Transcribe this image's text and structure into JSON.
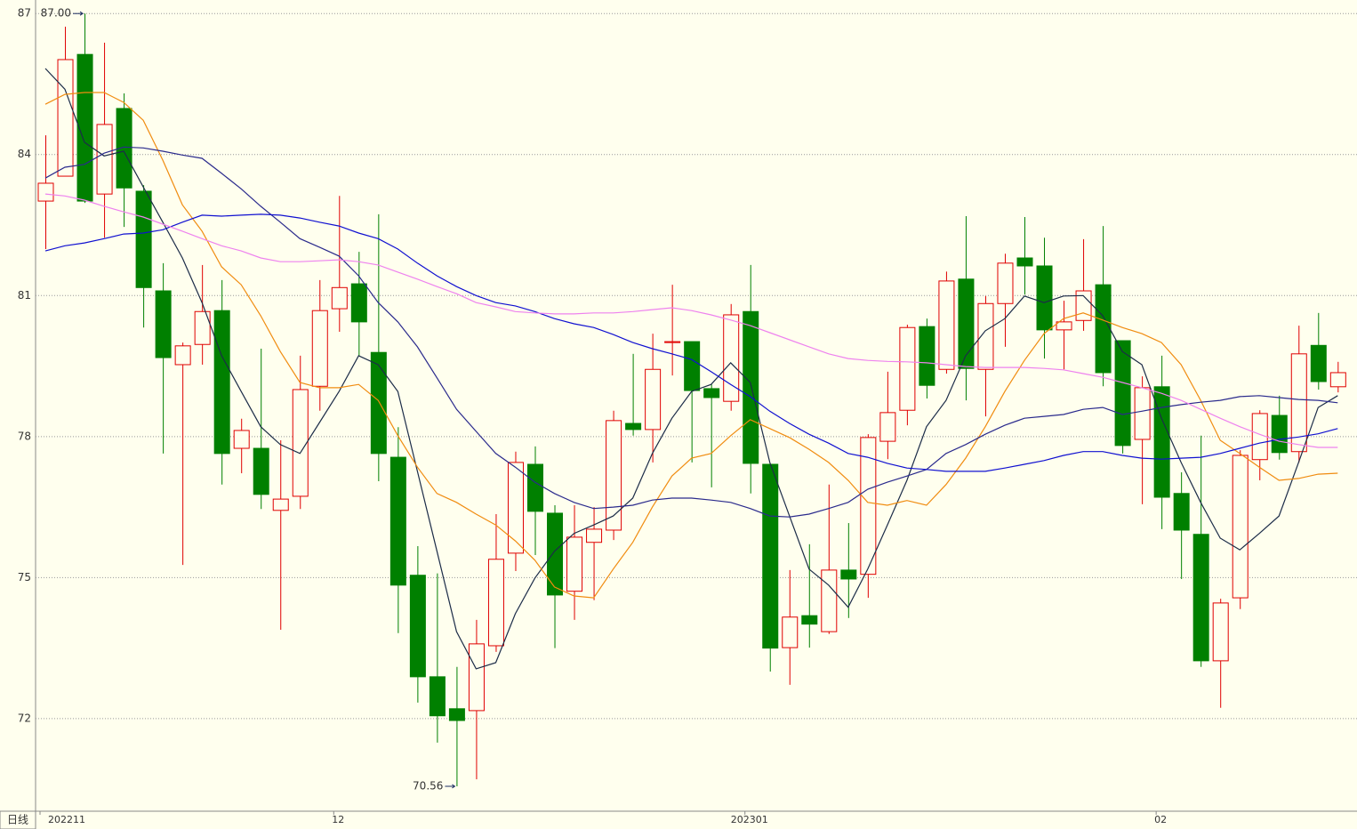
{
  "chart_data": {
    "type": "candlestick",
    "period_label": "日线",
    "categories": [
      "202211",
      null,
      null,
      null,
      null,
      null,
      null,
      null,
      null,
      null,
      null,
      null,
      null,
      null,
      null,
      "12",
      null,
      null,
      null,
      null,
      null,
      null,
      null,
      null,
      null,
      null,
      null,
      null,
      null,
      null,
      null,
      null,
      null,
      null,
      null,
      null,
      "202301",
      null,
      null,
      null,
      null,
      null,
      null,
      null,
      null,
      null,
      null,
      null,
      null,
      null,
      null,
      null,
      null,
      null,
      null,
      null,
      null,
      "02",
      null,
      null,
      null,
      null,
      null,
      null,
      null,
      null,
      null
    ],
    "open": [
      83.01,
      83.54,
      86.13,
      83.16,
      84.98,
      83.22,
      81.1,
      79.53,
      79.96,
      80.68,
      77.75,
      77.75,
      76.43,
      76.73,
      79.07,
      80.72,
      81.25,
      79.79,
      77.56,
      75.05,
      72.89,
      72.21,
      72.17,
      73.55,
      75.52,
      77.41,
      76.37,
      74.71,
      75.75,
      76.01,
      78.28,
      78.15,
      80.0,
      80.02,
      79.02,
      78.75,
      80.66,
      77.41,
      73.51,
      74.19,
      73.85,
      75.16,
      75.07,
      77.9,
      78.56,
      80.34,
      79.43,
      81.35,
      79.43,
      80.83,
      81.8,
      81.63,
      80.27,
      80.47,
      81.23,
      80.04,
      77.94,
      79.06,
      76.79,
      75.92,
      73.23,
      74.57,
      77.51,
      78.45,
      77.68,
      79.94,
      79.06
    ],
    "high": [
      84.41,
      86.72,
      87.0,
      86.38,
      85.3,
      83.35,
      81.69,
      80.0,
      81.65,
      81.33,
      78.38,
      79.87,
      77.92,
      79.72,
      81.33,
      83.12,
      81.93,
      82.73,
      78.2,
      75.67,
      75.09,
      73.1,
      74.1,
      76.35,
      77.68,
      77.79,
      76.54,
      76.54,
      76.5,
      78.55,
      79.76,
      80.19,
      81.23,
      80.02,
      79.11,
      80.82,
      81.65,
      77.41,
      75.16,
      75.71,
      76.98,
      76.16,
      78.05,
      79.38,
      80.38,
      80.51,
      81.51,
      82.69,
      80.99,
      81.89,
      82.67,
      82.23,
      80.89,
      82.2,
      82.48,
      80.04,
      79.28,
      79.72,
      77.24,
      78.02,
      74.55,
      77.71,
      78.56,
      78.87,
      80.36,
      80.63,
      79.59
    ],
    "low": [
      81.99,
      83.54,
      82.97,
      82.23,
      82.46,
      80.32,
      77.64,
      75.27,
      79.53,
      76.98,
      77.22,
      76.46,
      73.89,
      76.46,
      78.55,
      80.23,
      79.72,
      77.05,
      73.82,
      72.34,
      71.49,
      70.56,
      70.71,
      73.42,
      75.14,
      75.48,
      73.5,
      74.1,
      74.52,
      75.8,
      78.02,
      77.45,
      79.3,
      77.45,
      76.92,
      78.55,
      76.79,
      73.0,
      72.72,
      73.51,
      73.8,
      74.14,
      74.57,
      77.52,
      78.24,
      78.81,
      79.34,
      78.77,
      78.43,
      79.91,
      81.02,
      79.66,
      79.43,
      80.25,
      79.07,
      77.64,
      76.56,
      76.03,
      74.97,
      73.1,
      72.23,
      74.33,
      77.07,
      77.51,
      77.45,
      79.0,
      78.94
    ],
    "close": [
      83.39,
      86.02,
      83.01,
      84.64,
      83.29,
      81.17,
      79.68,
      79.93,
      80.66,
      77.64,
      78.13,
      76.77,
      76.67,
      79.0,
      80.68,
      81.17,
      80.44,
      77.64,
      74.84,
      72.89,
      72.06,
      71.96,
      73.59,
      75.39,
      77.45,
      76.41,
      74.63,
      75.86,
      76.03,
      78.34,
      78.15,
      79.43,
      80.02,
      78.98,
      78.83,
      80.59,
      77.43,
      73.5,
      74.16,
      74.01,
      75.16,
      74.97,
      77.98,
      78.51,
      80.32,
      79.09,
      81.31,
      79.45,
      80.83,
      81.69,
      81.63,
      80.27,
      80.44,
      81.1,
      79.36,
      77.81,
      79.04,
      76.71,
      76.01,
      73.23,
      74.46,
      77.6,
      78.49,
      77.66,
      79.76,
      79.17,
      79.36
    ],
    "up_color": "#e00000",
    "down_color": "#008000",
    "series": [
      {
        "color": "#1c2c48",
        "values": [
          85.83,
          85.39,
          84.26,
          83.97,
          84.07,
          83.31,
          82.56,
          81.8,
          80.85,
          79.72,
          78.96,
          78.21,
          77.83,
          77.64,
          78.3,
          78.96,
          79.72,
          79.53,
          78.96,
          77.26,
          75.56,
          73.85,
          73.06,
          73.19,
          74.23,
          74.99,
          75.56,
          75.94,
          76.12,
          76.31,
          76.69,
          77.64,
          78.39,
          78.96,
          79.11,
          79.57,
          79.15,
          77.45,
          76.31,
          75.18,
          74.84,
          74.37,
          75.18,
          76.12,
          77.07,
          78.21,
          78.77,
          79.72,
          80.25,
          80.51,
          80.99,
          80.85,
          80.99,
          81.0,
          80.57,
          79.81,
          79.53,
          78.39,
          77.45,
          76.6,
          75.84,
          75.59,
          75.94,
          76.31,
          77.45,
          78.62,
          78.87
        ]
      },
      {
        "color": "#f08c10",
        "values": [
          85.07,
          85.28,
          85.32,
          85.32,
          85.11,
          84.73,
          83.88,
          82.93,
          82.37,
          81.61,
          81.23,
          80.57,
          79.81,
          79.15,
          79.04,
          79.04,
          79.11,
          78.77,
          78.02,
          77.35,
          76.79,
          76.6,
          76.35,
          76.12,
          75.78,
          75.37,
          74.8,
          74.61,
          74.57,
          75.18,
          75.75,
          76.5,
          77.16,
          77.54,
          77.64,
          78.02,
          78.36,
          78.17,
          77.98,
          77.73,
          77.45,
          77.07,
          76.6,
          76.54,
          76.64,
          76.54,
          76.98,
          77.54,
          78.21,
          78.96,
          79.62,
          80.19,
          80.51,
          80.63,
          80.48,
          80.32,
          80.19,
          80.0,
          79.53,
          78.77,
          77.92,
          77.64,
          77.35,
          77.07,
          77.11,
          77.2,
          77.22
        ]
      },
      {
        "color": "#2a2a8c",
        "values": [
          83.5,
          83.73,
          83.79,
          84.03,
          84.16,
          84.14,
          84.07,
          83.99,
          83.92,
          83.6,
          83.27,
          82.9,
          82.56,
          82.21,
          82.03,
          81.84,
          81.42,
          80.85,
          80.44,
          79.91,
          79.25,
          78.58,
          78.11,
          77.64,
          77.35,
          77.03,
          76.79,
          76.6,
          76.47,
          76.5,
          76.54,
          76.65,
          76.69,
          76.69,
          76.65,
          76.6,
          76.47,
          76.31,
          76.29,
          76.35,
          76.47,
          76.6,
          76.88,
          77.03,
          77.16,
          77.3,
          77.64,
          77.83,
          78.05,
          78.24,
          78.39,
          78.43,
          78.47,
          78.58,
          78.62,
          78.47,
          78.54,
          78.62,
          78.68,
          78.73,
          78.77,
          78.85,
          78.87,
          78.83,
          78.79,
          78.77,
          78.72
        ]
      },
      {
        "color": "#1010d0",
        "values": [
          81.95,
          82.06,
          82.12,
          82.21,
          82.31,
          82.33,
          82.4,
          82.56,
          82.71,
          82.69,
          82.71,
          82.73,
          82.71,
          82.65,
          82.56,
          82.48,
          82.33,
          82.21,
          81.99,
          81.69,
          81.42,
          81.19,
          81.0,
          80.85,
          80.78,
          80.66,
          80.51,
          80.4,
          80.32,
          80.17,
          80.0,
          79.87,
          79.76,
          79.64,
          79.38,
          79.11,
          78.85,
          78.54,
          78.28,
          78.05,
          77.86,
          77.64,
          77.56,
          77.43,
          77.33,
          77.3,
          77.26,
          77.26,
          77.26,
          77.33,
          77.41,
          77.49,
          77.6,
          77.68,
          77.68,
          77.6,
          77.54,
          77.52,
          77.54,
          77.56,
          77.64,
          77.75,
          77.86,
          77.94,
          77.99,
          78.06,
          78.17
        ]
      },
      {
        "color": "#ee82ee",
        "values": [
          83.16,
          83.12,
          83.03,
          82.9,
          82.78,
          82.67,
          82.52,
          82.37,
          82.21,
          82.06,
          81.95,
          81.8,
          81.72,
          81.72,
          81.74,
          81.76,
          81.72,
          81.65,
          81.5,
          81.35,
          81.19,
          81.04,
          80.85,
          80.76,
          80.66,
          80.63,
          80.61,
          80.61,
          80.63,
          80.63,
          80.66,
          80.7,
          80.74,
          80.68,
          80.59,
          80.48,
          80.36,
          80.21,
          80.06,
          79.91,
          79.76,
          79.66,
          79.62,
          79.6,
          79.59,
          79.57,
          79.53,
          79.49,
          79.47,
          79.47,
          79.47,
          79.45,
          79.42,
          79.34,
          79.26,
          79.15,
          79.04,
          78.92,
          78.77,
          78.58,
          78.39,
          78.21,
          78.05,
          77.9,
          77.83,
          77.77,
          77.77
        ]
      }
    ],
    "annotations": [
      {
        "value": 87,
        "label": "87.00"
      },
      {
        "value": 70.56,
        "label": "70.56"
      }
    ],
    "ylim": [
      70.03,
      87.25
    ],
    "yticks": [
      72,
      75,
      78,
      81,
      84,
      87
    ],
    "grid": true
  }
}
